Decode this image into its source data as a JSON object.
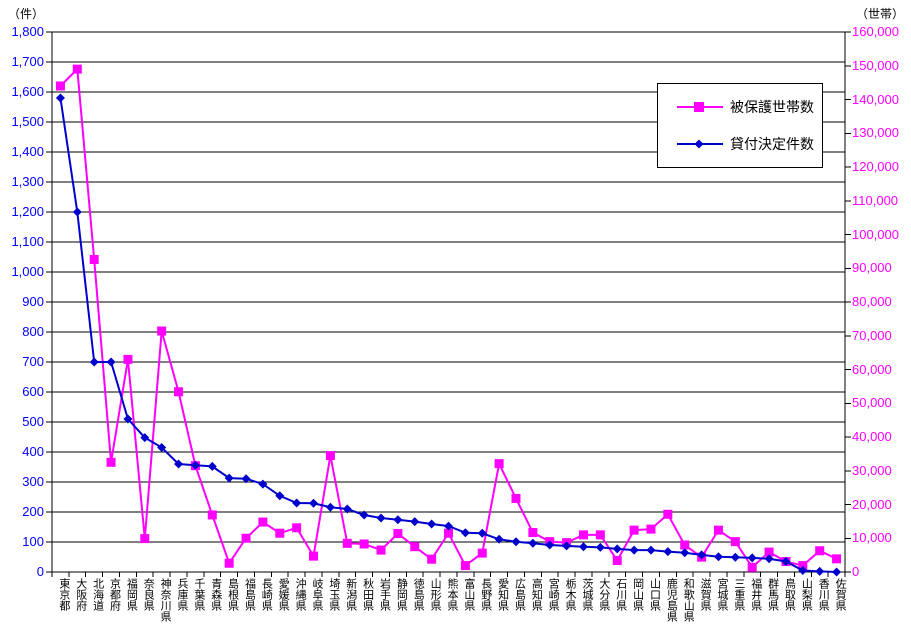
{
  "page": {
    "background": "#ffffff"
  },
  "chart_data": {
    "type": "line",
    "title": "",
    "grid": true,
    "legend_position": "top-right",
    "left_axis": {
      "unit_label": "（件）",
      "min": 0,
      "max": 1800,
      "step": 100,
      "color": "#0000ff",
      "tick_labels": [
        "0",
        "100",
        "200",
        "300",
        "400",
        "500",
        "600",
        "700",
        "800",
        "900",
        "1,000",
        "1,100",
        "1,200",
        "1,300",
        "1,400",
        "1,500",
        "1,600",
        "1,700",
        "1,800"
      ]
    },
    "right_axis": {
      "unit_label": "（世帯）",
      "min": 0,
      "max": 160000,
      "step": 10000,
      "color": "#ff00ff",
      "tick_labels": [
        "0",
        "10,000",
        "20,000",
        "30,000",
        "40,000",
        "50,000",
        "60,000",
        "70,000",
        "80,000",
        "90,000",
        "100,000",
        "110,000",
        "120,000",
        "130,000",
        "140,000",
        "150,000",
        "160,000"
      ]
    },
    "categories": [
      "東京都",
      "大阪府",
      "北海道",
      "京都府",
      "福岡県",
      "奈良県",
      "神奈川県",
      "兵庫県",
      "千葉県",
      "青森県",
      "島根県",
      "福島県",
      "長崎県",
      "愛媛県",
      "沖縄県",
      "岐阜県",
      "埼玉県",
      "新潟県",
      "秋田県",
      "岩手県",
      "静岡県",
      "徳島県",
      "山形県",
      "熊本県",
      "富山県",
      "長野県",
      "愛知県",
      "広島県",
      "高知県",
      "宮崎県",
      "栃木県",
      "茨城県",
      "大分県",
      "石川県",
      "岡山県",
      "山口県",
      "鹿児島県",
      "和歌山県",
      "滋賀県",
      "宮城県",
      "三重県",
      "福井県",
      "群馬県",
      "鳥取県",
      "山梨県",
      "香川県",
      "佐賀県"
    ],
    "series": [
      {
        "name": "被保護世帯数",
        "axis": "right",
        "color": "#ff00ff",
        "marker": "square",
        "values": [
          144000,
          149000,
          92600,
          32500,
          63000,
          9900,
          71400,
          53400,
          31500,
          16900,
          2600,
          10000,
          14800,
          11500,
          13100,
          4700,
          34500,
          8500,
          8300,
          6500,
          11400,
          7500,
          3800,
          11500,
          1900,
          5600,
          32100,
          21800,
          11700,
          9000,
          8700,
          11000,
          11000,
          3400,
          12400,
          12700,
          17100,
          8000,
          4400,
          12400,
          9000,
          1400,
          5900,
          3100,
          1900,
          6300,
          3900
        ]
      },
      {
        "name": "貸付決定件数",
        "axis": "left",
        "color": "#0000cc",
        "marker": "diamond",
        "values": [
          1580,
          1200,
          700,
          700,
          510,
          448,
          415,
          360,
          356,
          352,
          313,
          311,
          293,
          254,
          230,
          229,
          216,
          210,
          190,
          180,
          174,
          168,
          160,
          153,
          131,
          129,
          109,
          101,
          96,
          90,
          87,
          84,
          82,
          77,
          73,
          73,
          68,
          64,
          57,
          51,
          49,
          47,
          44,
          35,
          5,
          2,
          0
        ]
      }
    ]
  }
}
